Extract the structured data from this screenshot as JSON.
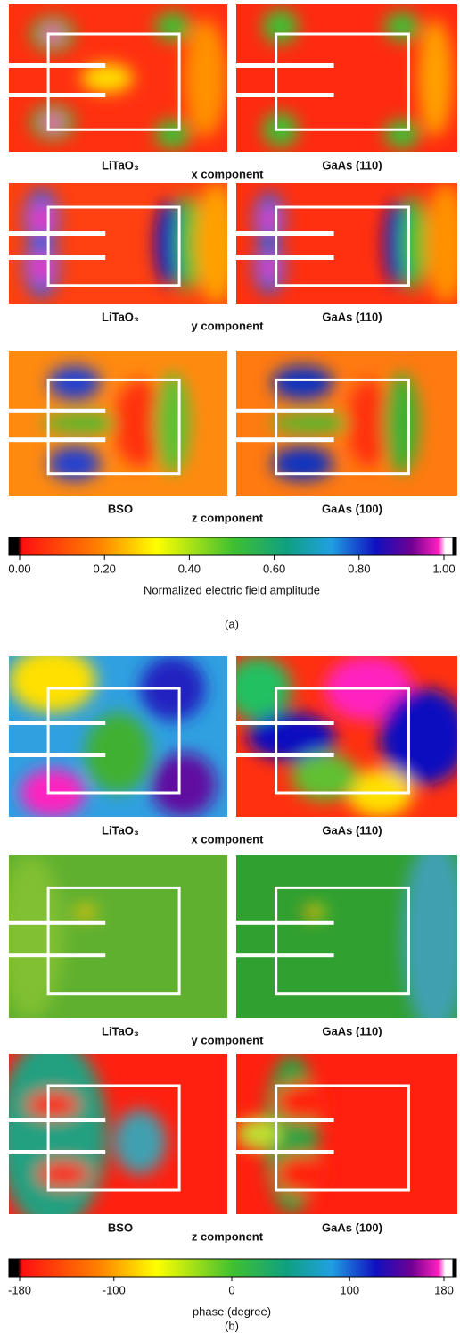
{
  "figure": {
    "part_a": {
      "rows": [
        {
          "left": "LiTaO₃",
          "center": "x component",
          "right": "GaAs (110)"
        },
        {
          "left": "LiTaO₃",
          "center": "y component",
          "right": "GaAs (110)"
        },
        {
          "left": "BSO",
          "center": "z component",
          "right": "GaAs (100)"
        }
      ],
      "colorbar": {
        "ticks": [
          {
            "value": 0,
            "label": "0.00"
          },
          {
            "value": 0.2,
            "label": "0.20"
          },
          {
            "value": 0.4,
            "label": "0.40"
          },
          {
            "value": 0.6,
            "label": "0.60"
          },
          {
            "value": 0.8,
            "label": "0.80"
          },
          {
            "value": 1,
            "label": "1.00"
          }
        ],
        "label": "Normalized electric field amplitude"
      },
      "caption": "(a)"
    },
    "part_b": {
      "rows": [
        {
          "left": "LiTaO₃",
          "center": "x component",
          "right": "GaAs (110)"
        },
        {
          "left": "LiTaO₃",
          "center": "y component",
          "right": "GaAs (110)"
        },
        {
          "left": "BSO",
          "center": "z component",
          "right": "GaAs (100)"
        }
      ],
      "colorbar": {
        "ticks": [
          -180,
          -100,
          0,
          100,
          180
        ],
        "label": "phase (degree)"
      },
      "caption": "(b)"
    }
  }
}
